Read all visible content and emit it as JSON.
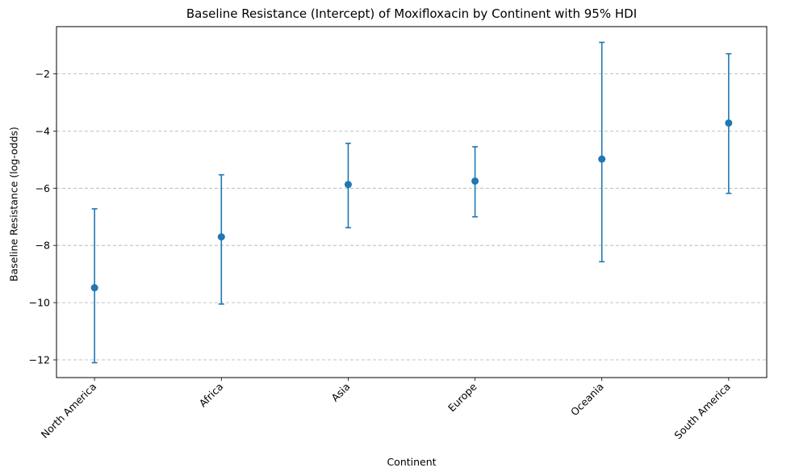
{
  "chart_data": {
    "type": "errorbar",
    "title": "Baseline Resistance (Intercept) of Moxifloxacin by Continent with 95% HDI",
    "xlabel": "Continent",
    "ylabel": "Baseline Resistance (log-odds)",
    "categories": [
      "North America",
      "Africa",
      "Asia",
      "Europe",
      "Oceania",
      "South America"
    ],
    "values": [
      -9.48,
      -7.7,
      -5.87,
      -5.75,
      -4.98,
      -3.72
    ],
    "hdi_lower": [
      -12.1,
      -10.05,
      -7.38,
      -7.0,
      -8.57,
      -6.18
    ],
    "hdi_upper": [
      -6.72,
      -5.53,
      -4.43,
      -4.55,
      -0.9,
      -1.3
    ],
    "ylim": [
      -12.62,
      -0.35
    ],
    "yticks": [
      -12,
      -10,
      -8,
      -6,
      -4,
      -2
    ],
    "ytick_labels": [
      "−12",
      "−10",
      "−8",
      "−6",
      "−4",
      "−2"
    ],
    "grid": "y-dashed",
    "series_color": "#1f77b4"
  }
}
